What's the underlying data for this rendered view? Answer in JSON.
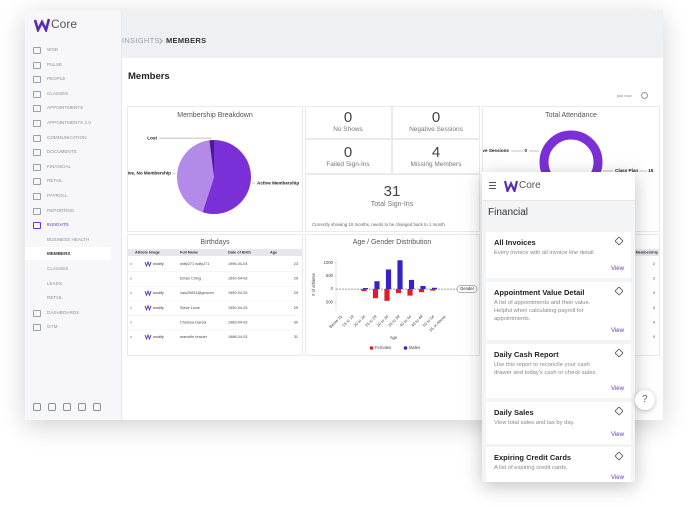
{
  "app": {
    "logo": "Core",
    "nav": [
      "WOD",
      "PULSE",
      "PEOPLE",
      "CLASSES",
      "APPOINTMENTS",
      "APPOINTMENTS 2.0",
      "COMMUNICATION",
      "DOCUMENTS",
      "FINANCIAL",
      "RETAIL",
      "PAYROLL",
      "REPORTING",
      "INSIGHTS"
    ],
    "subnav": [
      "BUSINESS HEALTH",
      "MEMBERS",
      "CLASSES",
      "LEADS",
      "RETAIL"
    ],
    "nav_bottom": [
      "DASHBOARDS",
      "GYM"
    ]
  },
  "breadcrumb": [
    "INSIGHTS",
    "MEMBERS"
  ],
  "page_title": "Members",
  "updated": "just now",
  "stats": [
    {
      "value": 0,
      "label": "No Shows"
    },
    {
      "value": 0,
      "label": "Negative Sessions"
    },
    {
      "value": 0,
      "label": "Failed Sign-Ins"
    },
    {
      "value": 4,
      "label": "Missing Members"
    }
  ],
  "sign_ins": {
    "value": 31,
    "label": "Total Sign-Ins"
  },
  "note": "Currently showing 10 months, needs to be changed back to 1 month.",
  "chart_data": [
    {
      "type": "pie",
      "title": "Membership Breakdown",
      "categories": [
        "Active Membership",
        "Inactive, No Membership",
        "Lost"
      ],
      "values": [
        55,
        43,
        2
      ],
      "colors": [
        "#7b2fd6",
        "#b48ae8",
        "#4a1a94"
      ]
    },
    {
      "type": "bar",
      "title": "Age / Gender Distribution",
      "x_label": "Age",
      "y_label": "# of athletes",
      "categories": [
        "Below 15",
        "15 to 19",
        "20 to 24",
        "25 to 29",
        "30 to 34",
        "35 to 39",
        "40 to 44",
        "45 to 49",
        "50 to 54",
        "55 or Above"
      ],
      "series": [
        {
          "name": "Females",
          "color": "#e31c23",
          "values": [
            0,
            0,
            -80,
            -350,
            -450,
            -150,
            -250,
            -120,
            -60,
            0
          ]
        },
        {
          "name": "Males",
          "color": "#3323c9",
          "values": [
            0,
            0,
            40,
            300,
            750,
            1100,
            350,
            120,
            50,
            0
          ]
        }
      ],
      "ylim": [
        -800,
        1150
      ],
      "yticks": [
        {
          "value": -500,
          "label": "500"
        },
        0,
        500,
        1000
      ],
      "annotation": "Gender"
    },
    {
      "type": "donut",
      "title": "Total Attendance",
      "categories": [
        "Negative Sessions",
        "Class Plan"
      ],
      "values": [
        0,
        15
      ],
      "colors": [
        "#4a1a94",
        "#7b2fd6"
      ]
    }
  ],
  "birthdays": {
    "title": "Birthdays",
    "columns": [
      "Athlete Image",
      "Full Name",
      "Date of Birth",
      "Age"
    ],
    "rows": [
      [
        "wodify",
        "wdfy271 wdfy271",
        "1996-04-03",
        23
      ],
      [
        null,
        "Ethan Ching",
        "1990-04-03",
        29
      ],
      [
        "wodify",
        "caio25631@gmcom",
        "1990-04-03",
        29
      ],
      [
        "wodify",
        "Steve Lucie",
        "1990-04-03",
        29
      ],
      [
        null,
        "Chelsea Garcia",
        "1989-04-03",
        30
      ],
      [
        "wodify",
        "marcelle brazier",
        "1988-04-03",
        31
      ]
    ]
  },
  "membership_column": {
    "header": "Membership",
    "values": [
      2,
      2,
      0,
      0,
      0,
      0
    ]
  },
  "mobile": {
    "logo": "Core",
    "title": "Financial",
    "items": [
      {
        "title": "All Invoices",
        "description": "Every invoice with all invoice line detail.",
        "link": "View"
      },
      {
        "title": "Appointment Value Detail",
        "description": "A list of appointments and their value. Helpful when calculating payroll for appointments.",
        "link": "View"
      },
      {
        "title": "Daily Cash Report",
        "description": "Use this report to reconcile your cash drawer and today's cash or check sales.",
        "link": "View"
      },
      {
        "title": "Daily Sales",
        "description": "View total sales and tax by day.",
        "link": "View"
      },
      {
        "title": "Expiring Credit Cards",
        "description": "A list of expiring credit cards.",
        "link": "View"
      }
    ]
  },
  "help": "?"
}
